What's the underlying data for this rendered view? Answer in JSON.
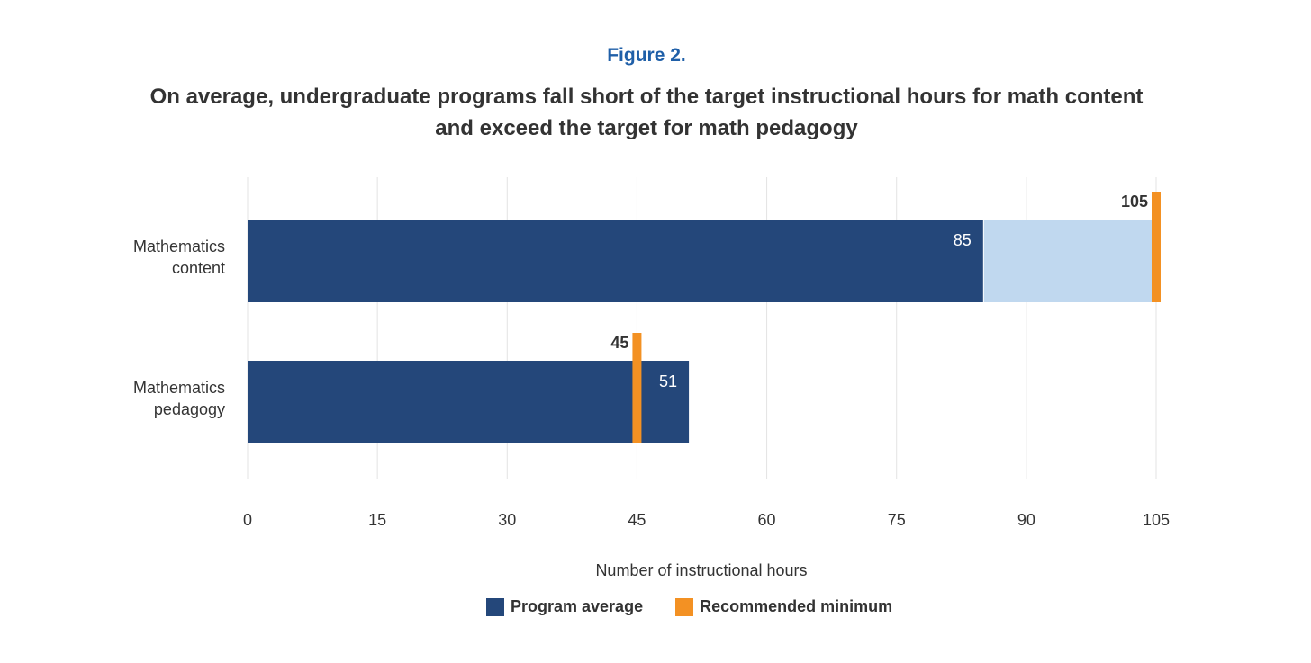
{
  "figure_label": "Figure 2.",
  "title": "On average, undergraduate programs fall short of the target instructional hours for math content and exceed the target for math pedagogy",
  "colors": {
    "program_average": "#24477a",
    "shortfall": "#c0d8ef",
    "recommended_minimum": "#f39123",
    "gridline": "#e3e3e3",
    "text": "#333333",
    "figure_label": "#1f5fa8"
  },
  "legend": {
    "program_average": "Program average",
    "recommended_minimum": "Recommended minimum"
  },
  "chart_data": {
    "type": "bar",
    "orientation": "horizontal",
    "xlabel": "Number of instructional hours",
    "ylabel": "",
    "xlim": [
      0,
      105
    ],
    "x_ticks": [
      0,
      15,
      30,
      45,
      60,
      75,
      90,
      105
    ],
    "grid": true,
    "legend_position": "bottom",
    "categories": [
      [
        "Mathematics",
        "content"
      ],
      [
        "Mathematics",
        "pedagogy"
      ]
    ],
    "series": [
      {
        "name": "Program average",
        "values": [
          85,
          51
        ],
        "labels": [
          "85",
          "51"
        ]
      },
      {
        "name": "Recommended minimum",
        "values": [
          105,
          45
        ],
        "labels": [
          "105",
          "45"
        ]
      }
    ]
  }
}
